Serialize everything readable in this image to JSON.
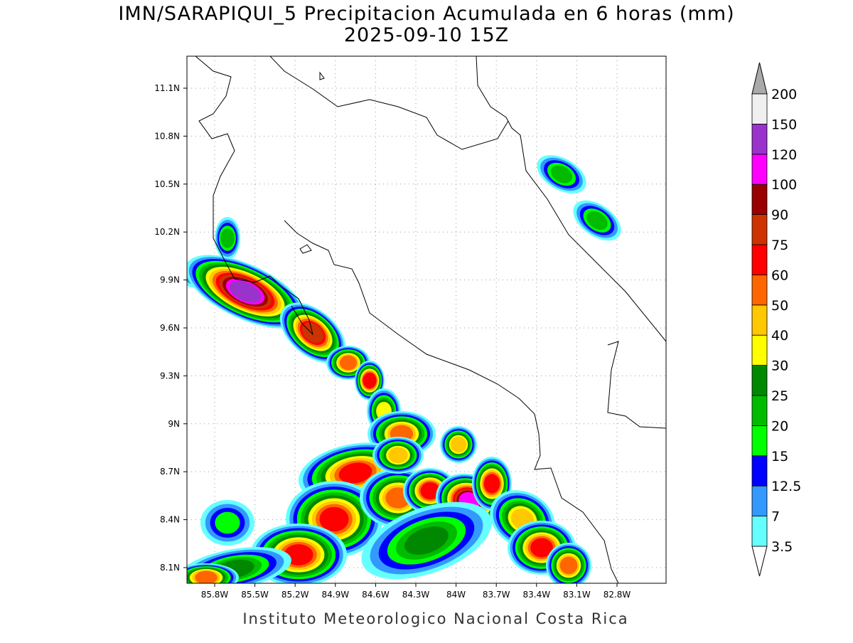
{
  "header": {
    "title": "IMN/SARAPIQUI_5 Precipitacion Acumulada en 6 horas (mm)",
    "subtitle": "2025-09-10 15Z"
  },
  "map": {
    "lat_labels": [
      "11.1N",
      "10.8N",
      "10.5N",
      "10.2N",
      "9.9N",
      "9.6N",
      "9.3N",
      "9N",
      "8.7N",
      "8.4N",
      "8.1N"
    ],
    "lon_labels": [
      "85.8W",
      "85.5W",
      "85.2W",
      "84.9W",
      "84.6W",
      "84.3W",
      "84W",
      "83.7W",
      "83.4W",
      "83.1W",
      "82.8W"
    ]
  },
  "colorbar": {
    "levels": [
      3.5,
      7,
      12.5,
      15,
      20,
      25,
      30,
      40,
      50,
      60,
      75,
      90,
      100,
      120,
      150,
      200
    ],
    "colors": [
      "#66ffff",
      "#3399ff",
      "#0000ff",
      "#00ff00",
      "#00bb00",
      "#008800",
      "#ffff00",
      "#ffc800",
      "#ff6600",
      "#ff0000",
      "#cc3300",
      "#990000",
      "#ff00ff",
      "#9933cc",
      "#f0f0f0"
    ],
    "over_color": "#aaaaaa",
    "under_color": "#ffffff"
  },
  "footer": "Instituto Meteorologico Nacional Costa Rica"
}
